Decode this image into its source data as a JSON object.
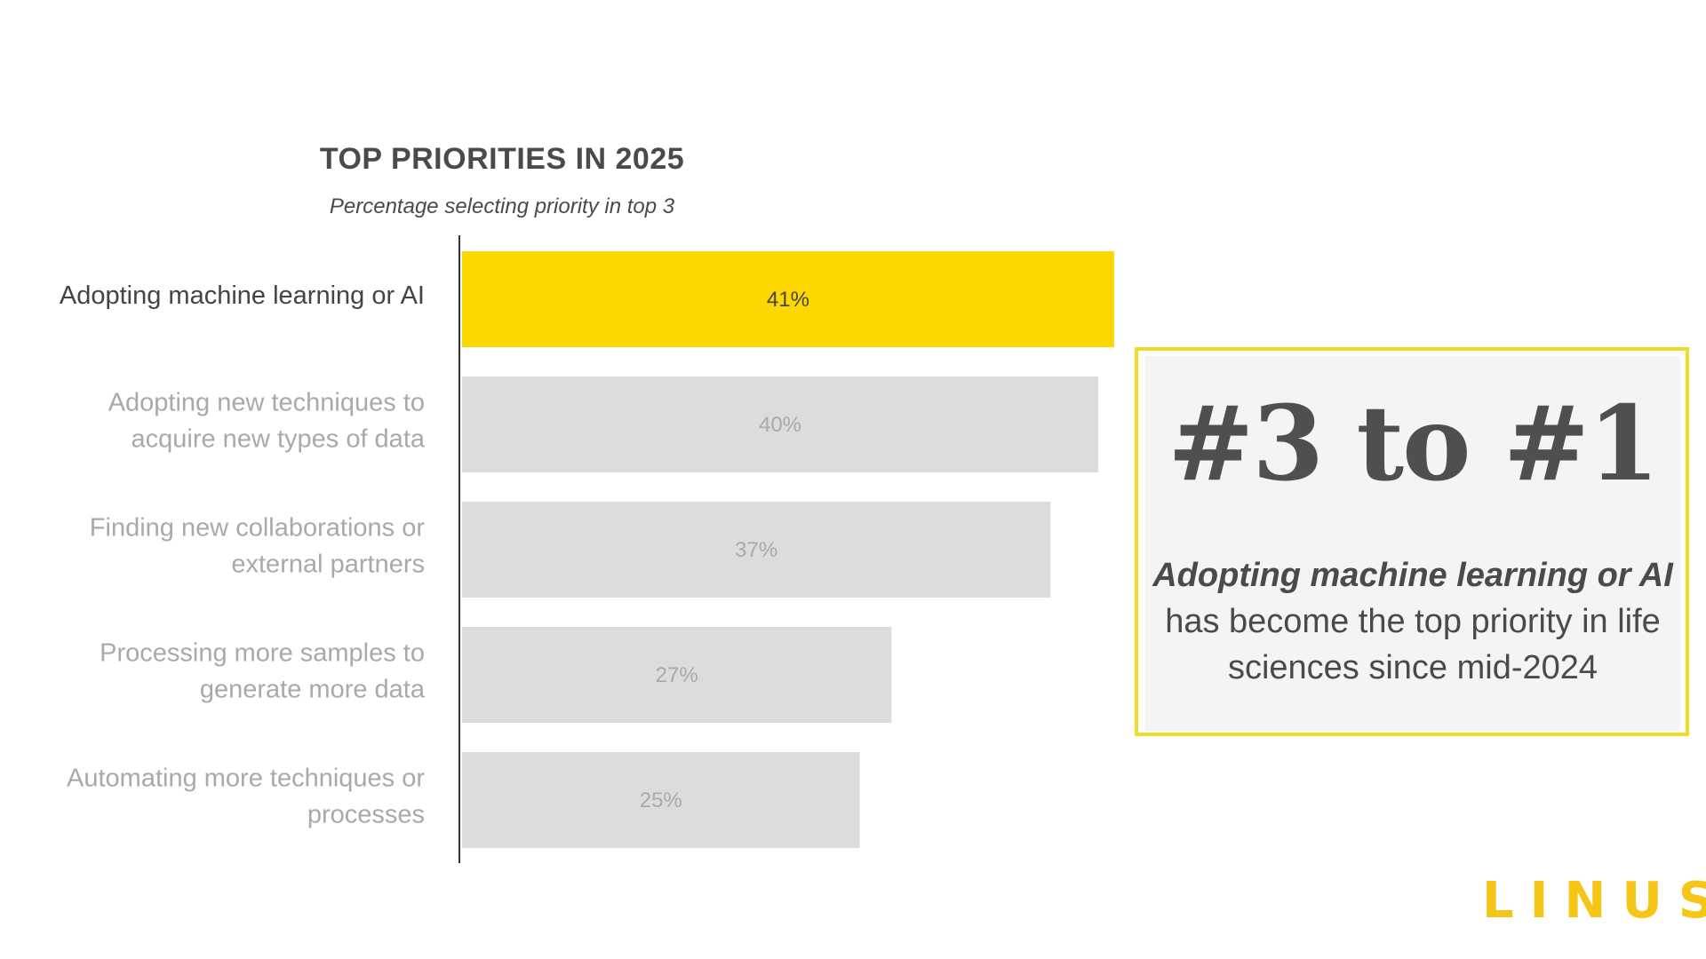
{
  "chart_data": {
    "type": "bar",
    "orientation": "horizontal",
    "title": "TOP PRIORITIES IN 2025",
    "subtitle": "Percentage selecting priority in top 3",
    "categories": [
      [
        "Adopting machine learning or AI"
      ],
      [
        "Adopting new techniques to",
        "acquire new types of data"
      ],
      [
        "Finding new collaborations or",
        "external partners"
      ],
      [
        "Processing more samples to",
        "generate more data"
      ],
      [
        "Automating more techniques or",
        "processes"
      ]
    ],
    "values": [
      41,
      40,
      37,
      27,
      25
    ],
    "value_labels": [
      "41%",
      "40%",
      "37%",
      "27%",
      "25%"
    ],
    "unit": "%",
    "highlight_index": 0,
    "colors": {
      "highlight": "#fdd800",
      "bar": "#dcdcdc",
      "highlight_text": "#444444",
      "muted_text": "#a9a9a9",
      "axis": "#333333"
    },
    "grid": false,
    "legend": "none"
  },
  "callout": {
    "headline": "#3 to #1",
    "body_emphasis": "Adopting machine learning or AI",
    "body_rest": " has become the top priority in life sciences since mid-2024"
  },
  "logo": {
    "text": "LINUS"
  }
}
